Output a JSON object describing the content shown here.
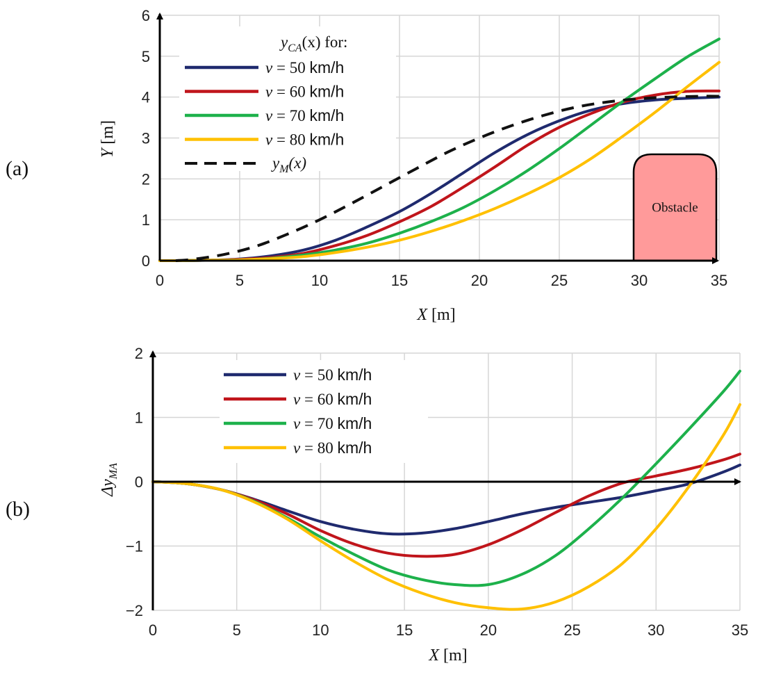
{
  "chart_data": [
    {
      "type": "line",
      "panel_label": "(a)",
      "xlabel_var": "X",
      "xlabel_unit": " [m]",
      "ylabel_var": "Y",
      "ylabel_unit": " [m]",
      "xlim": [
        0,
        35
      ],
      "ylim": [
        0,
        6
      ],
      "xticks": [
        0,
        5,
        10,
        15,
        20,
        25,
        30,
        35
      ],
      "yticks": [
        0,
        1,
        2,
        3,
        4,
        5,
        6
      ],
      "grid": true,
      "legend_position": "top-left",
      "legend_title_var": "y",
      "legend_title_sub": "CA",
      "legend_title_arg": "(x) for:",
      "series": [
        {
          "name": "v = 50 km/h",
          "speed": "50",
          "color": "#1f2a6e",
          "dash": false,
          "x": [
            0,
            1,
            3,
            5,
            7,
            9,
            11,
            13,
            15,
            17,
            19,
            21,
            23,
            25,
            27,
            29,
            31,
            33,
            35
          ],
          "y": [
            0,
            0.0,
            0.01,
            0.04,
            0.12,
            0.26,
            0.5,
            0.83,
            1.2,
            1.65,
            2.15,
            2.65,
            3.08,
            3.42,
            3.68,
            3.84,
            3.93,
            3.97,
            4.0
          ]
        },
        {
          "name": "v = 60 km/h",
          "speed": "60",
          "color": "#c0151b",
          "dash": false,
          "x": [
            0,
            1,
            3,
            5,
            7,
            9,
            11,
            13,
            15,
            17,
            19,
            21,
            23,
            25,
            27,
            29,
            31,
            33,
            35
          ],
          "y": [
            0,
            0.0,
            0.01,
            0.03,
            0.08,
            0.18,
            0.37,
            0.62,
            0.95,
            1.33,
            1.8,
            2.3,
            2.82,
            3.26,
            3.6,
            3.88,
            4.05,
            4.14,
            4.15
          ]
        },
        {
          "name": "v = 70 km/h",
          "speed": "70",
          "color": "#1db14b",
          "dash": false,
          "x": [
            0,
            1,
            3,
            5,
            7,
            9,
            11,
            13,
            15,
            17,
            19,
            21,
            23,
            25,
            27,
            29,
            31,
            33,
            35
          ],
          "y": [
            0,
            0.0,
            0.01,
            0.02,
            0.06,
            0.14,
            0.26,
            0.43,
            0.67,
            0.96,
            1.3,
            1.72,
            2.2,
            2.74,
            3.32,
            3.9,
            4.45,
            4.98,
            5.42
          ]
        },
        {
          "name": "v = 80 km/h",
          "speed": "80",
          "color": "#ffc000",
          "dash": false,
          "x": [
            0,
            1,
            3,
            5,
            7,
            9,
            11,
            13,
            15,
            17,
            19,
            21,
            23,
            25,
            27,
            29,
            31,
            33,
            35
          ],
          "y": [
            0,
            0.0,
            0.01,
            0.02,
            0.05,
            0.1,
            0.2,
            0.33,
            0.5,
            0.72,
            0.98,
            1.28,
            1.63,
            2.03,
            2.5,
            3.05,
            3.63,
            4.25,
            4.85
          ]
        },
        {
          "name": "yM(x)",
          "color": "#111111",
          "dash": true,
          "x": [
            1,
            2,
            4,
            6,
            8,
            10,
            12,
            14,
            16,
            18,
            20,
            22,
            24,
            26,
            28,
            30,
            32,
            34,
            35
          ],
          "y": [
            0,
            0.03,
            0.15,
            0.35,
            0.65,
            1.0,
            1.4,
            1.82,
            2.24,
            2.65,
            3.0,
            3.3,
            3.55,
            3.75,
            3.88,
            3.96,
            4.0,
            4.02,
            4.02
          ]
        }
      ],
      "annotation": {
        "label": "Obstacle",
        "x_range": [
          30,
          35
        ],
        "y_top": 2.6,
        "color": "#ff9a9a"
      }
    },
    {
      "type": "line",
      "panel_label": "(b)",
      "xlabel_var": "X",
      "xlabel_unit": " [m]",
      "ylabel_var": "Δy",
      "ylabel_sub": "MA",
      "xlim": [
        0,
        35
      ],
      "ylim": [
        -2,
        2
      ],
      "xticks": [
        0,
        5,
        10,
        15,
        20,
        25,
        30,
        35
      ],
      "yticks": [
        -2,
        -1,
        0,
        1,
        2
      ],
      "ytick_labels": [
        "−2",
        "−1",
        "0",
        "1",
        "2"
      ],
      "grid": true,
      "legend_position": "top-left",
      "series": [
        {
          "name": "v = 50 km/h",
          "speed": "50",
          "color": "#1f2a6e",
          "x": [
            0,
            2,
            4,
            6,
            8,
            10,
            12,
            14,
            16,
            18,
            20,
            22,
            24,
            26,
            28,
            30,
            32,
            34,
            35
          ],
          "y": [
            0,
            -0.03,
            -0.12,
            -0.27,
            -0.45,
            -0.62,
            -0.74,
            -0.81,
            -0.8,
            -0.73,
            -0.62,
            -0.5,
            -0.4,
            -0.32,
            -0.24,
            -0.14,
            -0.03,
            0.15,
            0.26
          ]
        },
        {
          "name": "v = 60 km/h",
          "speed": "60",
          "color": "#c0151b",
          "x": [
            0,
            2,
            4,
            6,
            8,
            10,
            12,
            14,
            16,
            18,
            20,
            22,
            24,
            26,
            28,
            30,
            32,
            34,
            35
          ],
          "y": [
            0,
            -0.03,
            -0.12,
            -0.28,
            -0.5,
            -0.76,
            -0.97,
            -1.11,
            -1.16,
            -1.13,
            -0.98,
            -0.75,
            -0.48,
            -0.22,
            -0.02,
            0.09,
            0.2,
            0.34,
            0.43
          ]
        },
        {
          "name": "v = 70 km/h",
          "speed": "70",
          "color": "#1db14b",
          "x": [
            0,
            2,
            4,
            6,
            8,
            10,
            12,
            14,
            16,
            18,
            20,
            22,
            24,
            26,
            28,
            30,
            32,
            34,
            35
          ],
          "y": [
            0,
            -0.03,
            -0.12,
            -0.3,
            -0.56,
            -0.86,
            -1.13,
            -1.37,
            -1.52,
            -1.6,
            -1.6,
            -1.44,
            -1.15,
            -0.73,
            -0.25,
            0.28,
            0.83,
            1.4,
            1.72
          ]
        },
        {
          "name": "v = 80 km/h",
          "speed": "80",
          "color": "#ffc000",
          "x": [
            0,
            2,
            4,
            6,
            8,
            10,
            12,
            14,
            16,
            18,
            20,
            22,
            24,
            26,
            28,
            30,
            32,
            34,
            35
          ],
          "y": [
            0,
            -0.03,
            -0.12,
            -0.31,
            -0.58,
            -0.92,
            -1.24,
            -1.52,
            -1.73,
            -1.88,
            -1.96,
            -1.98,
            -1.87,
            -1.63,
            -1.27,
            -0.73,
            -0.06,
            0.72,
            1.2
          ]
        }
      ]
    }
  ]
}
